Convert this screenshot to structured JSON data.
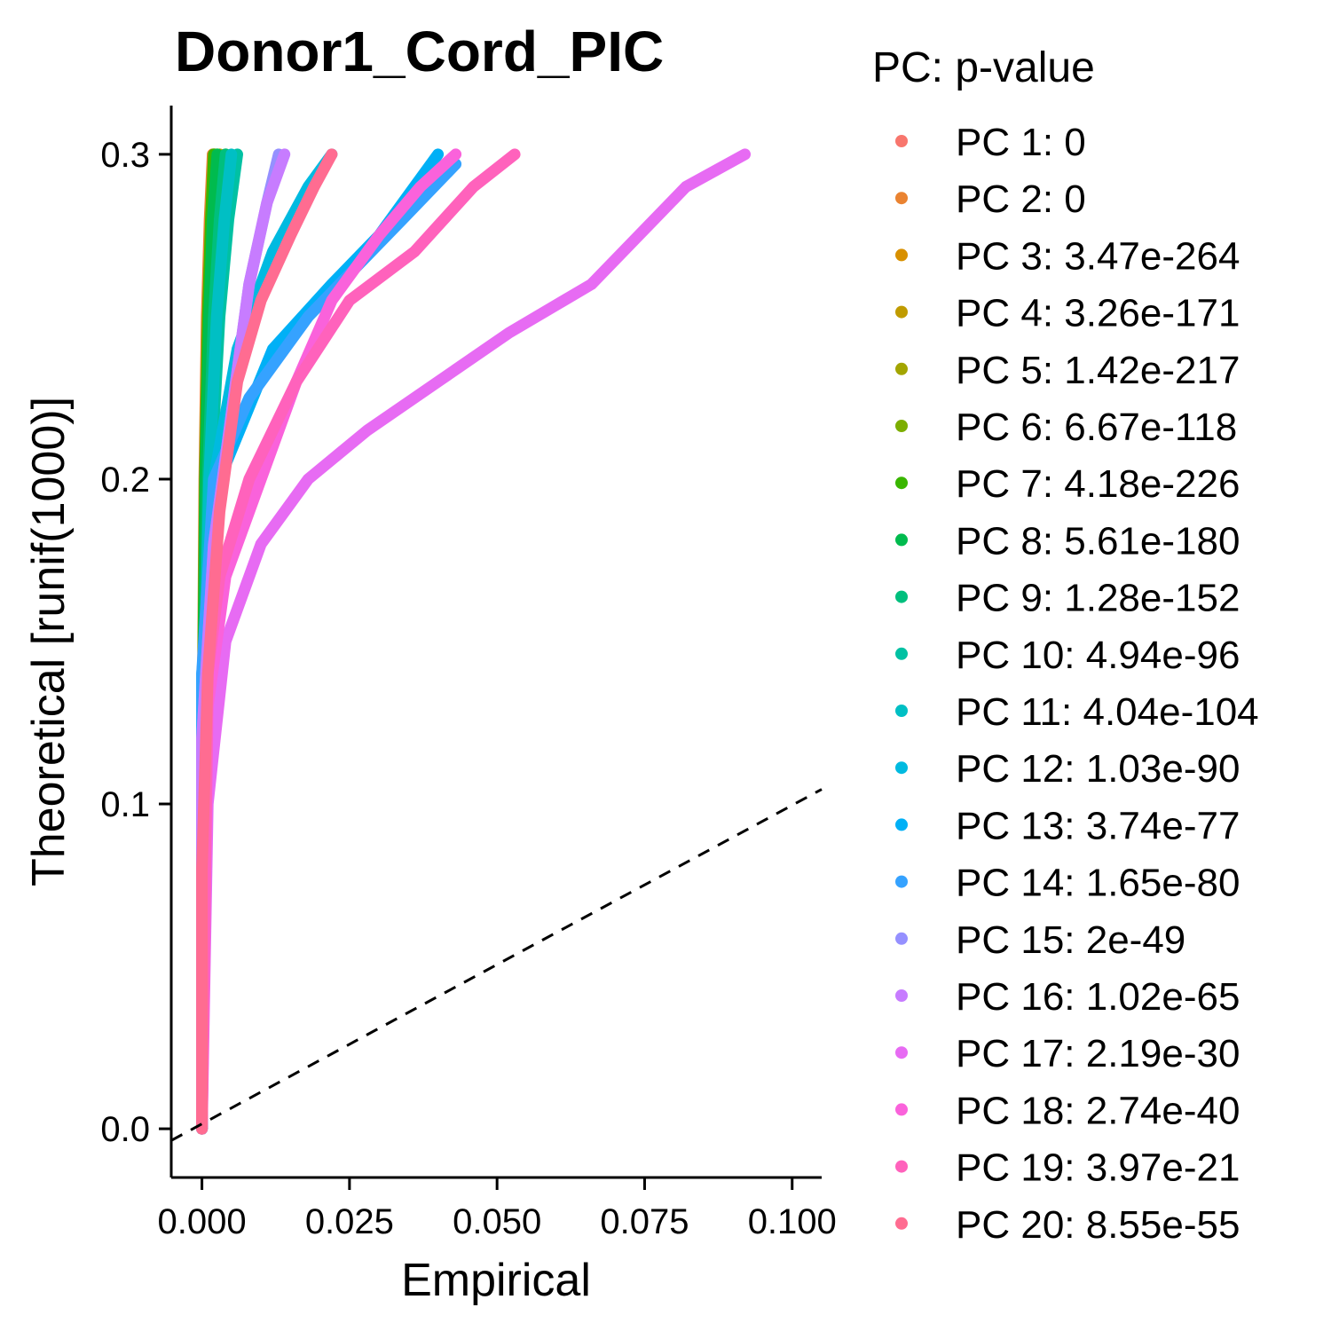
{
  "chart_data": {
    "type": "line",
    "title": "Donor1_Cord_PIC",
    "xlabel": "Empirical",
    "ylabel": "Theoretical [runif(1000)]",
    "xlim": [
      -0.0052,
      0.105
    ],
    "ylim": [
      -0.015,
      0.315
    ],
    "x_ticks": [
      "0.000",
      "0.025",
      "0.050",
      "0.075",
      "0.100"
    ],
    "y_ticks": [
      "0.0",
      "0.1",
      "0.2",
      "0.3"
    ],
    "grid": false,
    "reference_line": {
      "style": "dashed",
      "x": [
        -0.0052,
        0.105
      ],
      "y": [
        -0.0036,
        0.1045
      ],
      "color": "#000000"
    },
    "legend": {
      "title": "PC: p-value",
      "position": "right",
      "entries": [
        "PC 1: 0",
        "PC 2: 0",
        "PC 3: 3.47e-264",
        "PC 4: 3.26e-171",
        "PC 5: 1.42e-217",
        "PC 6: 6.67e-118",
        "PC 7: 4.18e-226",
        "PC 8: 5.61e-180",
        "PC 9: 1.28e-152",
        "PC 10: 4.94e-96",
        "PC 11: 4.04e-104",
        "PC 12: 1.03e-90",
        "PC 13: 3.74e-77",
        "PC 14: 1.65e-80",
        "PC 15: 2e-49",
        "PC 16: 1.02e-65",
        "PC 17: 2.19e-30",
        "PC 18: 2.74e-40",
        "PC 19: 3.97e-21",
        "PC 20: 8.55e-55"
      ]
    },
    "series": [
      {
        "color": "#F8766D",
        "x": [
          0.0,
          0.0,
          0.0005,
          0.001,
          0.0015,
          0.002
        ],
        "y": [
          0.0,
          0.1,
          0.2,
          0.25,
          0.28,
          0.3
        ]
      },
      {
        "color": "#EA8331",
        "x": [
          0.0,
          0.0,
          0.0004,
          0.0008,
          0.0013,
          0.0018
        ],
        "y": [
          0.0,
          0.1,
          0.2,
          0.25,
          0.28,
          0.3
        ]
      },
      {
        "color": "#D89000",
        "x": [
          0.0,
          0.0,
          0.0005,
          0.001,
          0.0016,
          0.0022
        ],
        "y": [
          0.0,
          0.1,
          0.2,
          0.25,
          0.28,
          0.3
        ]
      },
      {
        "color": "#C09B00",
        "x": [
          0.0,
          0.0,
          0.0008,
          0.0015,
          0.0022,
          0.003
        ],
        "y": [
          0.0,
          0.1,
          0.2,
          0.25,
          0.28,
          0.3
        ]
      },
      {
        "color": "#A3A500",
        "x": [
          0.0,
          0.0,
          0.0006,
          0.0012,
          0.0018,
          0.0025
        ],
        "y": [
          0.0,
          0.1,
          0.2,
          0.25,
          0.28,
          0.3
        ]
      },
      {
        "color": "#7CAE00",
        "x": [
          0.0,
          0.0,
          0.001,
          0.002,
          0.003,
          0.004
        ],
        "y": [
          0.0,
          0.1,
          0.2,
          0.25,
          0.28,
          0.3
        ]
      },
      {
        "color": "#39B600",
        "x": [
          0.0,
          0.0,
          0.0005,
          0.001,
          0.0015,
          0.002
        ],
        "y": [
          0.0,
          0.1,
          0.2,
          0.25,
          0.28,
          0.3
        ]
      },
      {
        "color": "#00BB4E",
        "x": [
          0.0,
          0.0,
          0.0006,
          0.0012,
          0.0018,
          0.0026
        ],
        "y": [
          0.0,
          0.1,
          0.2,
          0.25,
          0.28,
          0.3
        ]
      },
      {
        "color": "#00BF7D",
        "x": [
          0.0,
          0.0,
          0.001,
          0.002,
          0.003,
          0.004
        ],
        "y": [
          0.0,
          0.1,
          0.2,
          0.25,
          0.28,
          0.3
        ]
      },
      {
        "color": "#00C1A3",
        "x": [
          0.0,
          0.0,
          0.0015,
          0.003,
          0.0045,
          0.006
        ],
        "y": [
          0.0,
          0.1,
          0.2,
          0.25,
          0.28,
          0.3
        ]
      },
      {
        "color": "#00BFC4",
        "x": [
          0.0,
          0.0,
          0.0012,
          0.0025,
          0.0038,
          0.005
        ],
        "y": [
          0.0,
          0.1,
          0.2,
          0.25,
          0.28,
          0.3
        ]
      },
      {
        "color": "#00BAE0",
        "x": [
          0.0,
          0.0,
          0.002,
          0.006,
          0.012,
          0.018,
          0.022
        ],
        "y": [
          0.0,
          0.12,
          0.2,
          0.24,
          0.27,
          0.29,
          0.3
        ]
      },
      {
        "color": "#00B0F6",
        "x": [
          0.0,
          0.0,
          0.003,
          0.012,
          0.022,
          0.03,
          0.036,
          0.04
        ],
        "y": [
          0.0,
          0.14,
          0.2,
          0.24,
          0.26,
          0.275,
          0.29,
          0.3
        ]
      },
      {
        "color": "#35A2FF",
        "x": [
          0.0,
          0.0,
          0.002,
          0.008,
          0.018,
          0.026,
          0.034,
          0.043
        ],
        "y": [
          0.0,
          0.14,
          0.2,
          0.225,
          0.25,
          0.265,
          0.28,
          0.297
        ]
      },
      {
        "color": "#9590FF",
        "x": [
          0.0,
          0.0,
          0.002,
          0.005,
          0.008,
          0.011,
          0.013
        ],
        "y": [
          0.0,
          0.12,
          0.18,
          0.22,
          0.26,
          0.285,
          0.3
        ]
      },
      {
        "color": "#C77CFF",
        "x": [
          0.0,
          0.0,
          0.002,
          0.005,
          0.008,
          0.011,
          0.014
        ],
        "y": [
          0.0,
          0.12,
          0.18,
          0.22,
          0.26,
          0.285,
          0.3
        ]
      },
      {
        "color": "#E76BF3",
        "x": [
          0.0,
          0.001,
          0.004,
          0.01,
          0.018,
          0.028,
          0.04,
          0.052,
          0.066,
          0.074,
          0.082,
          0.092
        ],
        "y": [
          0.0,
          0.1,
          0.15,
          0.18,
          0.2,
          0.215,
          0.23,
          0.245,
          0.26,
          0.275,
          0.29,
          0.3
        ]
      },
      {
        "color": "#FA62DB",
        "x": [
          0.0,
          0.001,
          0.004,
          0.01,
          0.016,
          0.022,
          0.03,
          0.037,
          0.043
        ],
        "y": [
          0.0,
          0.13,
          0.17,
          0.2,
          0.23,
          0.255,
          0.275,
          0.29,
          0.3
        ]
      },
      {
        "color": "#FF62BC",
        "x": [
          0.0,
          0.001,
          0.003,
          0.008,
          0.016,
          0.025,
          0.036,
          0.046,
          0.053
        ],
        "y": [
          0.0,
          0.14,
          0.17,
          0.2,
          0.23,
          0.255,
          0.27,
          0.29,
          0.3
        ]
      },
      {
        "color": "#FF6C91",
        "x": [
          0.0,
          0.0,
          0.001,
          0.003,
          0.006,
          0.01,
          0.015,
          0.019,
          0.022
        ],
        "y": [
          0.0,
          0.08,
          0.14,
          0.19,
          0.23,
          0.255,
          0.275,
          0.29,
          0.3
        ]
      }
    ]
  }
}
